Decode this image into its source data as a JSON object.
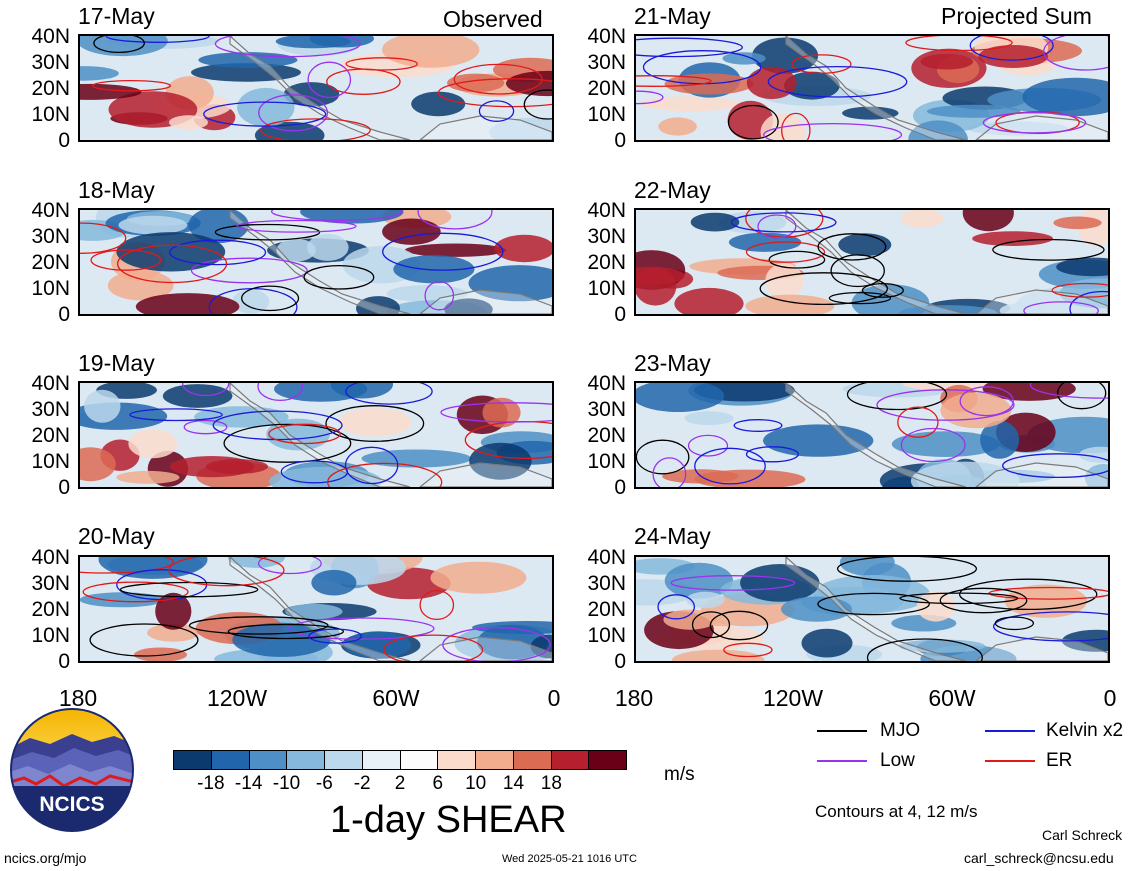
{
  "headers": {
    "left": "Observed",
    "right": "Projected Sum"
  },
  "panels_left": [
    {
      "date": "17-May"
    },
    {
      "date": "18-May"
    },
    {
      "date": "19-May"
    },
    {
      "date": "20-May"
    }
  ],
  "panels_right": [
    {
      "date": "21-May"
    },
    {
      "date": "22-May"
    },
    {
      "date": "23-May"
    },
    {
      "date": "24-May"
    }
  ],
  "lat_labels": [
    "40N",
    "30N",
    "20N",
    "10N",
    "0"
  ],
  "lon_labels": [
    "180",
    "120W",
    "60W",
    "0"
  ],
  "colorbar": {
    "title": "1-day SHEAR",
    "units": "m/s",
    "tick_labels": [
      "-18",
      "-14",
      "-10",
      "-6",
      "-2",
      "2",
      "6",
      "10",
      "14",
      "18"
    ],
    "colors": [
      "#0b3a6e",
      "#2166ac",
      "#4d8fc6",
      "#85b8dc",
      "#bcd8ec",
      "#e8f1f7",
      "#fbfbfb",
      "#fbdccc",
      "#f2ad8f",
      "#dc6b54",
      "#b51f2e",
      "#690018"
    ]
  },
  "legend": {
    "items": [
      {
        "label": "MJO",
        "color": "#000000"
      },
      {
        "label": "Kelvin x2",
        "color": "#1a1adb"
      },
      {
        "label": "Low",
        "color": "#9933ee"
      },
      {
        "label": "ER",
        "color": "#e01a1a"
      }
    ],
    "contours_note": "Contours at 4, 12 m/s"
  },
  "logo": {
    "text": "NCICS"
  },
  "footer": {
    "website": "ncics.org/mjo",
    "timestamp": "Wed 2025-05-21 1016 UTC",
    "author": "Carl Schreck",
    "email": "carl_schreck@ncsu.edu"
  }
}
